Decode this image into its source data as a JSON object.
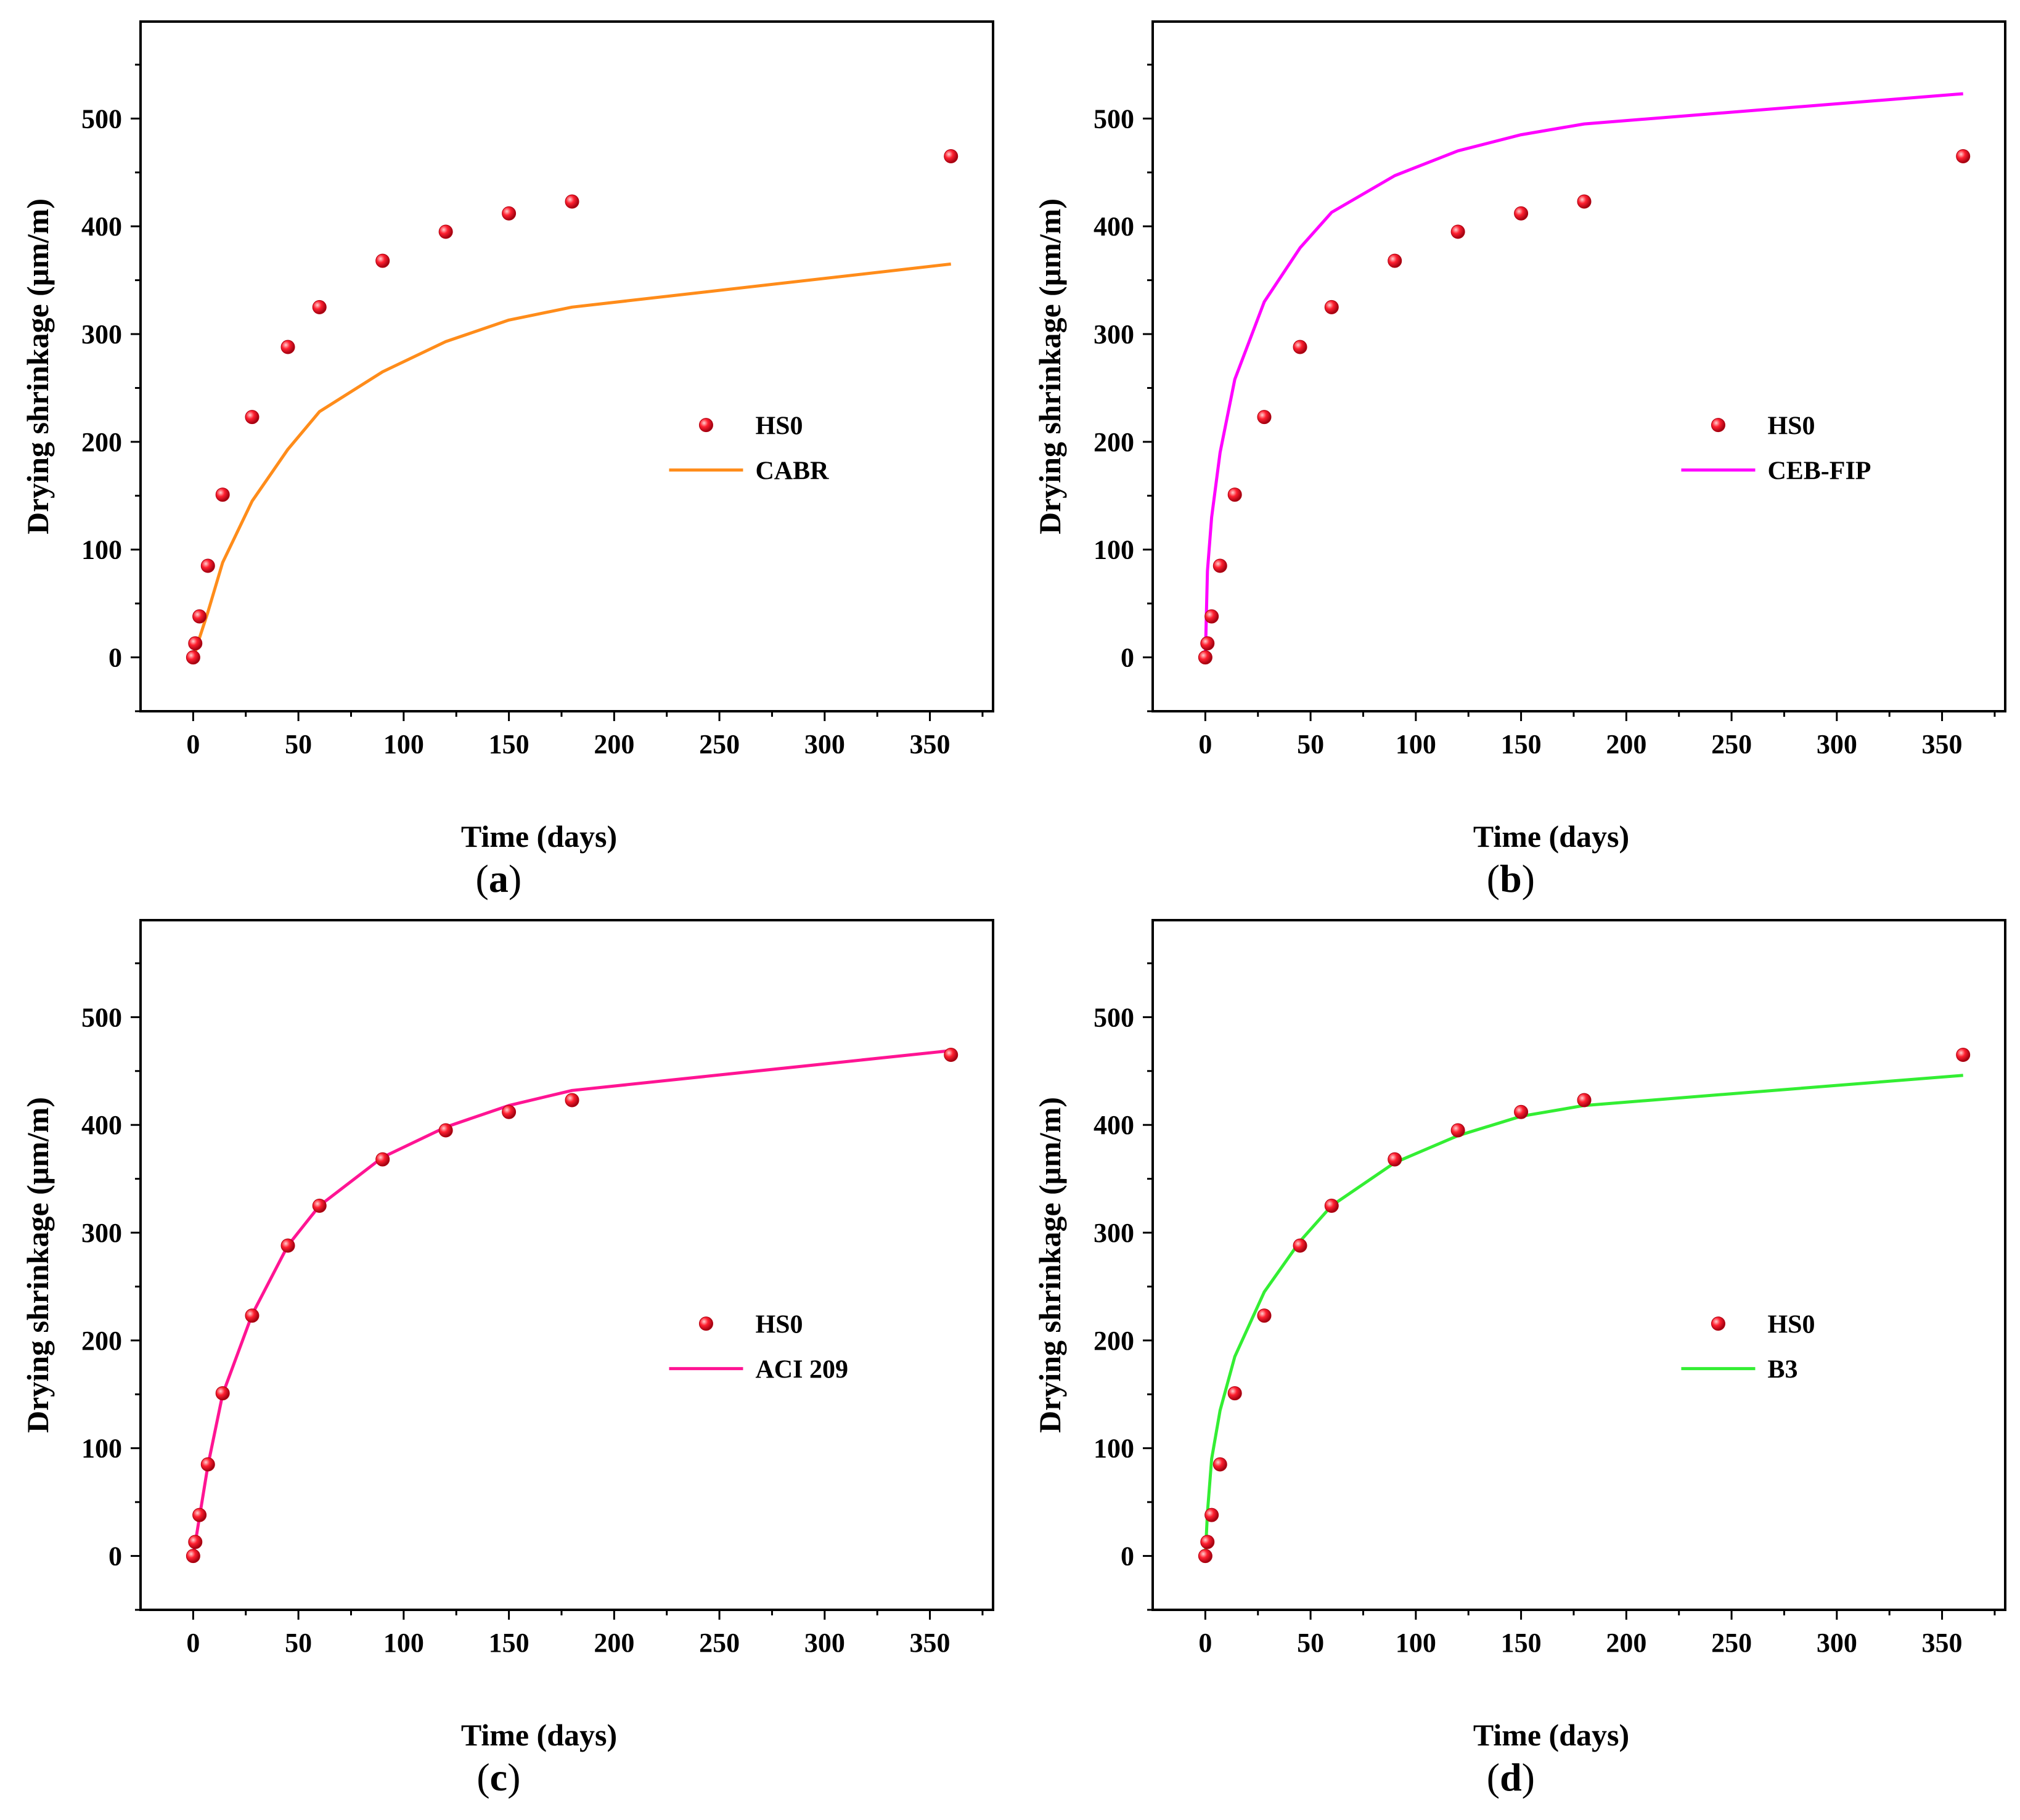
{
  "chart_data": [
    {
      "type": "scatter+line",
      "panel_label": "a",
      "xlabel": "Time (days)",
      "ylabel": "Drying shrinkage (μm/m)",
      "xlim": [
        -25,
        380
      ],
      "ylim": [
        -50,
        590
      ],
      "xticks": [
        0,
        50,
        100,
        150,
        200,
        250,
        300,
        350
      ],
      "yticks": [
        0,
        100,
        200,
        300,
        400,
        500
      ],
      "legend_position": "center-right",
      "series": [
        {
          "name": "HS0",
          "kind": "scatter",
          "color": "#e3001b",
          "x": [
            0,
            1,
            3,
            7,
            14,
            28,
            45,
            60,
            90,
            120,
            150,
            180,
            360
          ],
          "y": [
            0,
            13,
            38,
            85,
            151,
            223,
            288,
            325,
            368,
            395,
            412,
            423,
            465
          ]
        },
        {
          "name": "CABR",
          "kind": "line",
          "color": "#ff8c1a",
          "x": [
            0,
            1,
            3,
            7,
            14,
            28,
            45,
            60,
            90,
            120,
            150,
            180,
            360
          ],
          "y": [
            0,
            5,
            18,
            42,
            88,
            145,
            193,
            228,
            265,
            293,
            313,
            325,
            365
          ]
        }
      ]
    },
    {
      "type": "scatter+line",
      "panel_label": "b",
      "xlabel": "Time (days)",
      "ylabel": "Drying shrinkage (μm/m)",
      "xlim": [
        -25,
        380
      ],
      "ylim": [
        -50,
        590
      ],
      "xticks": [
        0,
        50,
        100,
        150,
        200,
        250,
        300,
        350
      ],
      "yticks": [
        0,
        100,
        200,
        300,
        400,
        500
      ],
      "legend_position": "center-right",
      "series": [
        {
          "name": "HS0",
          "kind": "scatter",
          "color": "#e3001b",
          "x": [
            0,
            1,
            3,
            7,
            14,
            28,
            45,
            60,
            90,
            120,
            150,
            180,
            360
          ],
          "y": [
            0,
            13,
            38,
            85,
            151,
            223,
            288,
            325,
            368,
            395,
            412,
            423,
            465
          ]
        },
        {
          "name": "CEB-FIP",
          "kind": "line",
          "color": "#ff00ff",
          "x": [
            0,
            1,
            3,
            7,
            14,
            28,
            45,
            60,
            90,
            120,
            150,
            180,
            360
          ],
          "y": [
            0,
            80,
            130,
            190,
            258,
            330,
            380,
            413,
            447,
            470,
            485,
            495,
            523
          ]
        }
      ]
    },
    {
      "type": "scatter+line",
      "panel_label": "c",
      "xlabel": "Time (days)",
      "ylabel": "Drying shrinkage (μm/m)",
      "xlim": [
        -25,
        380
      ],
      "ylim": [
        -50,
        590
      ],
      "xticks": [
        0,
        50,
        100,
        150,
        200,
        250,
        300,
        350
      ],
      "yticks": [
        0,
        100,
        200,
        300,
        400,
        500
      ],
      "legend_position": "center-right",
      "series": [
        {
          "name": "HS0",
          "kind": "scatter",
          "color": "#e3001b",
          "x": [
            0,
            1,
            3,
            7,
            14,
            28,
            45,
            60,
            90,
            120,
            150,
            180,
            360
          ],
          "y": [
            0,
            13,
            38,
            85,
            151,
            223,
            288,
            325,
            368,
            395,
            412,
            423,
            465
          ]
        },
        {
          "name": "ACI 209",
          "kind": "line",
          "color": "#ff1493",
          "x": [
            0,
            1,
            3,
            7,
            14,
            28,
            45,
            60,
            90,
            120,
            150,
            180,
            360
          ],
          "y": [
            0,
            12,
            36,
            84,
            150,
            224,
            288,
            325,
            370,
            398,
            418,
            432,
            469
          ]
        }
      ]
    },
    {
      "type": "scatter+line",
      "panel_label": "d",
      "xlabel": "Time (days)",
      "ylabel": "Drying shrinkage (μm/m)",
      "xlim": [
        -25,
        380
      ],
      "ylim": [
        -50,
        590
      ],
      "xticks": [
        0,
        50,
        100,
        150,
        200,
        250,
        300,
        350
      ],
      "yticks": [
        0,
        100,
        200,
        300,
        400,
        500
      ],
      "legend_position": "center-right",
      "series": [
        {
          "name": "HS0",
          "kind": "scatter",
          "color": "#e3001b",
          "x": [
            0,
            1,
            3,
            7,
            14,
            28,
            45,
            60,
            90,
            120,
            150,
            180,
            360
          ],
          "y": [
            0,
            13,
            38,
            85,
            151,
            223,
            288,
            325,
            368,
            395,
            412,
            423,
            465
          ]
        },
        {
          "name": "B3",
          "kind": "line",
          "color": "#33ee33",
          "x": [
            0,
            1,
            3,
            7,
            14,
            28,
            45,
            60,
            90,
            120,
            150,
            180,
            360
          ],
          "y": [
            0,
            40,
            90,
            135,
            185,
            245,
            292,
            325,
            365,
            390,
            408,
            418,
            446
          ]
        }
      ]
    }
  ]
}
